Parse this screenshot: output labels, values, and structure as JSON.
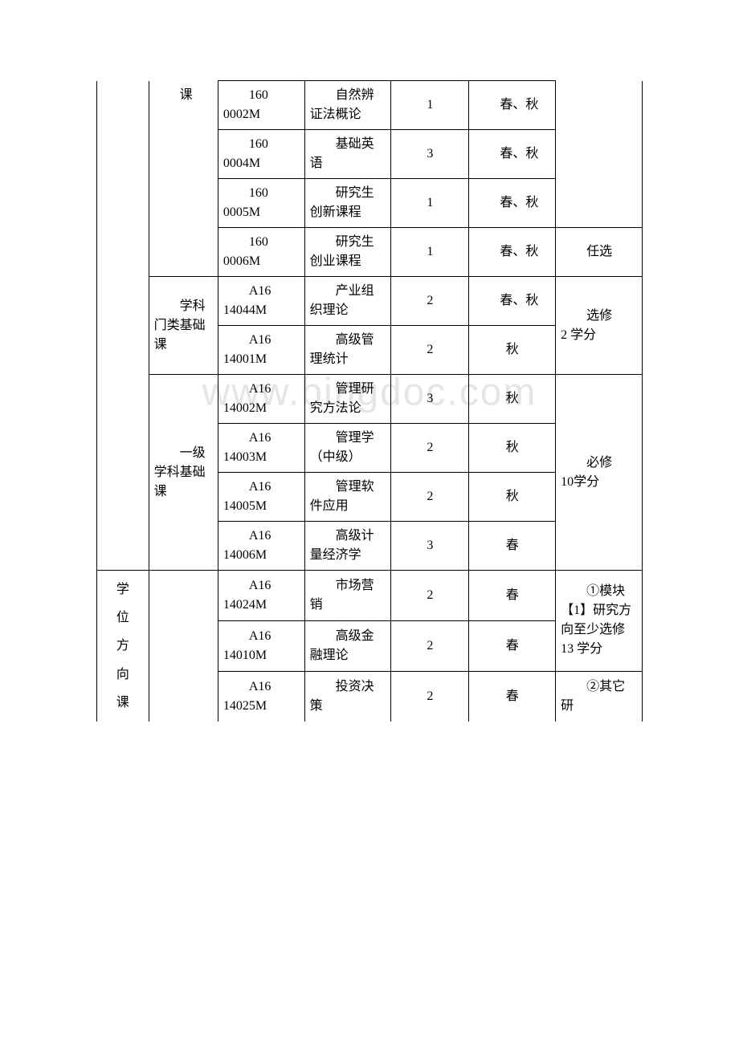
{
  "watermark": "www.bingdoc.com",
  "colA_course": "课",
  "colA_degree": "学\n位\n方\n向\n课",
  "groupB_discipline": "学科门类基础课",
  "groupB_firstlevel": "一级学科基础课",
  "rows": [
    {
      "code": "160\n0002M",
      "name": "自然辨证法概论",
      "credit": "1",
      "term": "春、秋",
      "note": ""
    },
    {
      "code": "160\n0004M",
      "name": "基础英语",
      "credit": "3",
      "term": "春、秋",
      "note": ""
    },
    {
      "code": "160\n0005M",
      "name": "研究生创新课程",
      "credit": "1",
      "term": "春、秋",
      "note": ""
    },
    {
      "code": "160\n0006M",
      "name": "研究生创业课程",
      "credit": "1",
      "term": "春、秋",
      "note": "任选"
    },
    {
      "code": "A16\n14044M",
      "name": "产业组织理论",
      "credit": "2",
      "term": "春、秋",
      "note": ""
    },
    {
      "code": "A16\n14001M",
      "name": "高级管理统计",
      "credit": "2",
      "term": "秋",
      "note": ""
    },
    {
      "code": "A16\n14002M",
      "name": "管理研究方法论",
      "credit": "3",
      "term": "秋",
      "note": ""
    },
    {
      "code": "A16\n14003M",
      "name": "管理学（中级）",
      "credit": "2",
      "term": "秋",
      "note": ""
    },
    {
      "code": "A16\n14005M",
      "name": "管理软件应用",
      "credit": "2",
      "term": "秋",
      "note": ""
    },
    {
      "code": "A16\n14006M",
      "name": "高级计量经济学",
      "credit": "3",
      "term": "春",
      "note": ""
    },
    {
      "code": "A16\n14024M",
      "name": "市场营销",
      "credit": "2",
      "term": "春",
      "note": ""
    },
    {
      "code": "A16\n14010M",
      "name": "高级金融理论",
      "credit": "2",
      "term": "春",
      "note": ""
    },
    {
      "code": "A16\n14025M",
      "name": "投资决策",
      "credit": "2",
      "term": "春",
      "note": ""
    }
  ],
  "note_choose": "选修\n2 学分",
  "note_required": "必修\n10学分",
  "note_module1": "①模块【1】研究方向至少选修13 学分",
  "note_module2": "②其它研"
}
